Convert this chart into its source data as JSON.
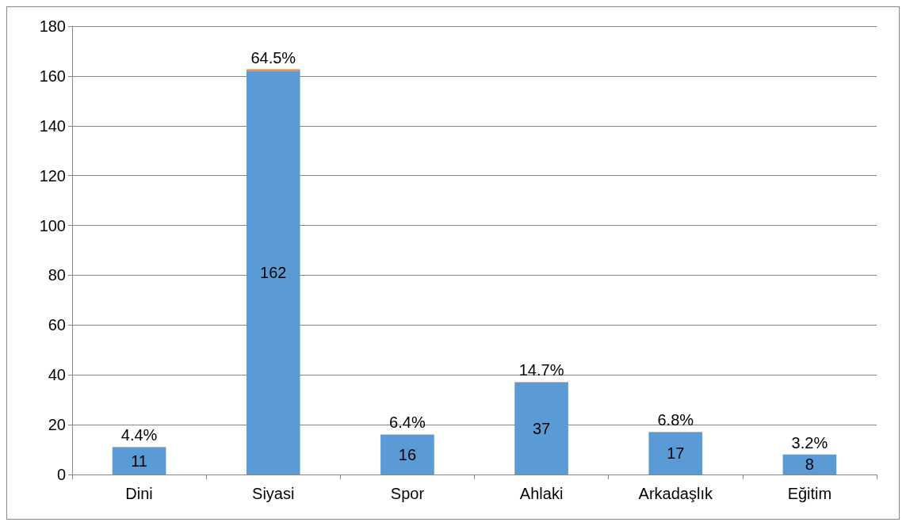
{
  "chart_data": {
    "type": "bar",
    "categories": [
      "Dini",
      "Siyasi",
      "Spor",
      "Ahlaki",
      "Arkadaşlık",
      "Eğitim"
    ],
    "stacked": true,
    "data_labels": true,
    "series": [
      {
        "color": "#5b9bd5",
        "values": [
          11,
          162,
          16,
          37,
          17,
          8
        ]
      },
      {
        "color": "#ed7d31",
        "values": [
          0.044,
          0.645,
          0.064,
          0.147,
          0.068,
          0.032
        ],
        "value_labels": [
          "4.4%",
          "64.5%",
          "6.4%",
          "14.7%",
          "6.8%",
          "3.2%"
        ]
      }
    ],
    "ylim": [
      0,
      180
    ],
    "yticks": [
      0,
      20,
      40,
      60,
      80,
      100,
      120,
      140,
      160,
      180
    ],
    "grid": "y"
  }
}
